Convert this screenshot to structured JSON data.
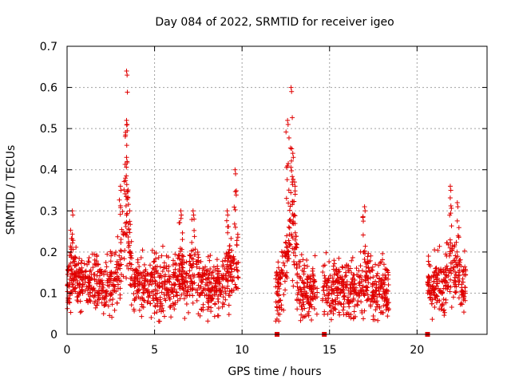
{
  "chart_data": {
    "type": "scatter",
    "title": "Day 084 of 2022, SRMTID for receiver igeo",
    "xlabel": "GPS time / hours",
    "ylabel": "SRMTID / TECUs",
    "xlim": [
      0,
      24
    ],
    "ylim": [
      0,
      0.7
    ],
    "xticks": [
      0,
      5,
      10,
      15,
      20
    ],
    "xtick_labels": [
      "0",
      "5",
      "10",
      "15",
      "20"
    ],
    "yticks": [
      0,
      0.1,
      0.2,
      0.3,
      0.4,
      0.5,
      0.6,
      0.7
    ],
    "ytick_labels": [
      "0",
      "0.1",
      "0.2",
      "0.3",
      "0.4",
      "0.5",
      "0.6",
      "0.7"
    ],
    "grid": true,
    "marker": "+",
    "color": "#e00000",
    "series": [
      {
        "name": "SRMTID",
        "segments": [
          {
            "x_start": 0.0,
            "x_end": 9.8,
            "base": 0.12,
            "spread": 0.05
          },
          {
            "x_start": 11.9,
            "x_end": 14.3,
            "base": 0.11,
            "spread": 0.05
          },
          {
            "x_start": 14.6,
            "x_end": 18.4,
            "base": 0.11,
            "spread": 0.05
          },
          {
            "x_start": 20.6,
            "x_end": 22.8,
            "base": 0.12,
            "spread": 0.05
          }
        ],
        "peaks": [
          {
            "x": 0.3,
            "value": 0.3
          },
          {
            "x": 3.05,
            "value": 0.36
          },
          {
            "x": 3.4,
            "value": 0.64
          },
          {
            "x": 3.4,
            "value": 0.52
          },
          {
            "x": 3.4,
            "value": 0.43
          },
          {
            "x": 6.5,
            "value": 0.3
          },
          {
            "x": 7.2,
            "value": 0.3
          },
          {
            "x": 9.15,
            "value": 0.3
          },
          {
            "x": 9.6,
            "value": 0.4
          },
          {
            "x": 12.8,
            "value": 0.6
          },
          {
            "x": 12.6,
            "value": 0.52
          },
          {
            "x": 12.9,
            "value": 0.44
          },
          {
            "x": 13.0,
            "value": 0.37
          },
          {
            "x": 17.0,
            "value": 0.31
          },
          {
            "x": 21.9,
            "value": 0.36
          },
          {
            "x": 22.3,
            "value": 0.32
          }
        ],
        "min_value": 0.03
      }
    ],
    "gap_markers": [
      12.0,
      14.7,
      20.6
    ]
  }
}
